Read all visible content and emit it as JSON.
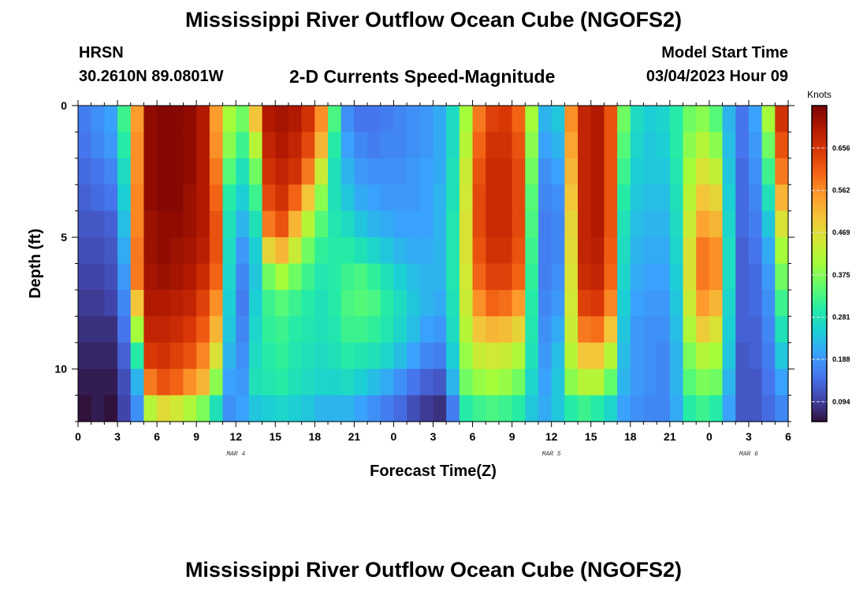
{
  "titles": {
    "main": "Mississippi River Outflow Ocean Cube (NGOFS2)",
    "repeat": "Mississippi River Outflow Ocean Cube (NGOFS2)"
  },
  "station": {
    "name": "HRSN",
    "coords": "30.2610N  89.0801W"
  },
  "plot_title": "2-D Currents Speed-Magnitude",
  "model_start": {
    "label": "Model Start Time",
    "value": "03/04/2023 Hour 09"
  },
  "colors": {
    "colormap": [
      "#30123b",
      "#4145ab",
      "#4675ed",
      "#39a2fc",
      "#1bcfd4",
      "#24eca6",
      "#61fc6c",
      "#a4fc3b",
      "#d1e834",
      "#f3c63a",
      "#fe9b2d",
      "#f36315",
      "#d93806",
      "#b11901",
      "#7a0403"
    ]
  },
  "chart_data": {
    "type": "heatmap",
    "title": "2-D Currents Speed-Magnitude",
    "xlabel": "Forecast Time(Z)",
    "ylabel": "Depth (ft)",
    "x_ticks": [
      "0",
      "3",
      "6",
      "9",
      "12",
      "15",
      "18",
      "21",
      "0",
      "3",
      "6",
      "9",
      "12",
      "15",
      "18",
      "21",
      "0",
      "3",
      "6"
    ],
    "x_tick_hours": [
      0,
      3,
      6,
      9,
      12,
      15,
      18,
      21,
      24,
      27,
      30,
      33,
      36,
      39,
      42,
      45,
      48,
      51,
      54
    ],
    "date_labels": [
      {
        "text": "MAR 4",
        "hour": 12
      },
      {
        "text": "MAR 5",
        "hour": 36
      },
      {
        "text": "MAR 6",
        "hour": 51
      }
    ],
    "xlim_hours": [
      0,
      54
    ],
    "y_ticks": [
      "0",
      "5",
      "10"
    ],
    "y_tick_values": [
      0,
      5,
      10
    ],
    "ylim_ft": [
      0,
      12
    ],
    "colorbar": {
      "unit": "Knots",
      "min": 0.05,
      "max": 0.75,
      "tick_values": [
        0.094,
        0.188,
        0.281,
        0.375,
        0.469,
        0.562,
        0.656
      ],
      "tick_labels": [
        "0.094",
        "0.188",
        "0.281",
        "0.375",
        "0.469",
        "0.562",
        "0.656"
      ]
    },
    "columns_hours": [
      0,
      1,
      2,
      3,
      4,
      5,
      6,
      7,
      8,
      9,
      10,
      11,
      12,
      13,
      14,
      15,
      16,
      17,
      18,
      19,
      20,
      21,
      22,
      23,
      24,
      25,
      26,
      27,
      28,
      29,
      30,
      31,
      32,
      33,
      34,
      35,
      36,
      37,
      38,
      39,
      40,
      41,
      42,
      43,
      44,
      45,
      46,
      47,
      48,
      49,
      50,
      51,
      52,
      53
    ],
    "depth_levels_ft": [
      0,
      1,
      2,
      3,
      4,
      5,
      6,
      7,
      8,
      9,
      10,
      11
    ],
    "profiles": [
      {
        "start_hour": 0,
        "values": [
          0.16,
          0.15,
          0.14,
          0.13,
          0.12,
          0.11,
          0.1,
          0.09,
          0.08,
          0.07,
          0.06,
          0.05
        ]
      },
      {
        "start_hour": 1,
        "values": [
          0.18,
          0.17,
          0.15,
          0.14,
          0.12,
          0.11,
          0.1,
          0.09,
          0.08,
          0.07,
          0.06,
          0.06
        ]
      },
      {
        "start_hour": 2,
        "values": [
          0.2,
          0.19,
          0.17,
          0.15,
          0.13,
          0.12,
          0.11,
          0.1,
          0.08,
          0.07,
          0.06,
          0.05
        ]
      },
      {
        "start_hour": 3,
        "values": [
          0.32,
          0.3,
          0.27,
          0.25,
          0.23,
          0.21,
          0.19,
          0.17,
          0.15,
          0.13,
          0.11,
          0.1
        ]
      },
      {
        "start_hour": 4,
        "values": [
          0.55,
          0.56,
          0.56,
          0.57,
          0.57,
          0.58,
          0.58,
          0.5,
          0.4,
          0.3,
          0.22,
          0.18
        ]
      },
      {
        "start_hour": 5,
        "values": [
          0.73,
          0.73,
          0.73,
          0.73,
          0.72,
          0.72,
          0.71,
          0.7,
          0.68,
          0.65,
          0.58,
          0.42
        ]
      },
      {
        "start_hour": 6,
        "values": [
          0.74,
          0.74,
          0.74,
          0.74,
          0.73,
          0.73,
          0.72,
          0.7,
          0.68,
          0.66,
          0.62,
          0.47
        ]
      },
      {
        "start_hour": 7,
        "values": [
          0.74,
          0.74,
          0.74,
          0.74,
          0.73,
          0.72,
          0.71,
          0.69,
          0.67,
          0.64,
          0.6,
          0.45
        ]
      },
      {
        "start_hour": 8,
        "values": [
          0.73,
          0.73,
          0.73,
          0.72,
          0.72,
          0.71,
          0.7,
          0.68,
          0.65,
          0.62,
          0.56,
          0.41
        ]
      },
      {
        "start_hour": 9,
        "values": [
          0.7,
          0.7,
          0.7,
          0.7,
          0.7,
          0.69,
          0.67,
          0.64,
          0.61,
          0.57,
          0.52,
          0.37
        ]
      },
      {
        "start_hour": 10,
        "values": [
          0.55,
          0.56,
          0.58,
          0.6,
          0.62,
          0.62,
          0.6,
          0.56,
          0.52,
          0.46,
          0.38,
          0.28
        ]
      },
      {
        "start_hour": 11,
        "values": [
          0.4,
          0.38,
          0.34,
          0.3,
          0.28,
          0.27,
          0.26,
          0.25,
          0.24,
          0.22,
          0.2,
          0.18
        ]
      },
      {
        "start_hour": 12,
        "values": [
          0.36,
          0.32,
          0.28,
          0.25,
          0.22,
          0.19,
          0.17,
          0.16,
          0.17,
          0.18,
          0.19,
          0.2
        ]
      },
      {
        "start_hour": 13,
        "values": [
          0.5,
          0.42,
          0.36,
          0.32,
          0.28,
          0.25,
          0.24,
          0.25,
          0.26,
          0.27,
          0.28,
          0.24
        ]
      },
      {
        "start_hour": 14,
        "values": [
          0.7,
          0.68,
          0.66,
          0.63,
          0.58,
          0.48,
          0.36,
          0.32,
          0.31,
          0.3,
          0.29,
          0.25
        ]
      },
      {
        "start_hour": 15,
        "values": [
          0.71,
          0.7,
          0.68,
          0.66,
          0.62,
          0.52,
          0.4,
          0.34,
          0.32,
          0.31,
          0.3,
          0.26
        ]
      },
      {
        "start_hour": 16,
        "values": [
          0.7,
          0.68,
          0.66,
          0.6,
          0.52,
          0.44,
          0.36,
          0.32,
          0.3,
          0.29,
          0.28,
          0.25
        ]
      },
      {
        "start_hour": 17,
        "values": [
          0.66,
          0.63,
          0.58,
          0.5,
          0.42,
          0.36,
          0.32,
          0.3,
          0.29,
          0.28,
          0.27,
          0.24
        ]
      },
      {
        "start_hour": 18,
        "values": [
          0.56,
          0.52,
          0.44,
          0.38,
          0.34,
          0.31,
          0.29,
          0.28,
          0.28,
          0.27,
          0.26,
          0.22
        ]
      },
      {
        "start_hour": 19,
        "values": [
          0.33,
          0.3,
          0.28,
          0.28,
          0.29,
          0.3,
          0.3,
          0.3,
          0.29,
          0.28,
          0.26,
          0.22
        ]
      },
      {
        "start_hour": 20,
        "values": [
          0.18,
          0.2,
          0.22,
          0.24,
          0.27,
          0.3,
          0.32,
          0.33,
          0.32,
          0.3,
          0.27,
          0.22
        ]
      },
      {
        "start_hour": 21,
        "values": [
          0.15,
          0.17,
          0.19,
          0.21,
          0.24,
          0.28,
          0.33,
          0.34,
          0.32,
          0.29,
          0.25,
          0.2
        ]
      },
      {
        "start_hour": 22,
        "values": [
          0.15,
          0.16,
          0.18,
          0.2,
          0.22,
          0.26,
          0.31,
          0.33,
          0.31,
          0.28,
          0.23,
          0.18
        ]
      },
      {
        "start_hour": 23,
        "values": [
          0.16,
          0.17,
          0.18,
          0.19,
          0.21,
          0.24,
          0.28,
          0.3,
          0.29,
          0.26,
          0.21,
          0.16
        ]
      },
      {
        "start_hour": 24,
        "values": [
          0.17,
          0.17,
          0.18,
          0.19,
          0.2,
          0.22,
          0.25,
          0.27,
          0.26,
          0.23,
          0.18,
          0.14
        ]
      },
      {
        "start_hour": 25,
        "values": [
          0.18,
          0.18,
          0.19,
          0.19,
          0.2,
          0.21,
          0.23,
          0.24,
          0.23,
          0.2,
          0.15,
          0.11
        ]
      },
      {
        "start_hour": 26,
        "values": [
          0.19,
          0.19,
          0.2,
          0.2,
          0.2,
          0.21,
          0.22,
          0.22,
          0.2,
          0.17,
          0.13,
          0.09
        ]
      },
      {
        "start_hour": 27,
        "values": [
          0.21,
          0.21,
          0.21,
          0.22,
          0.22,
          0.22,
          0.22,
          0.21,
          0.19,
          0.16,
          0.12,
          0.08
        ]
      },
      {
        "start_hour": 28,
        "values": [
          0.27,
          0.27,
          0.28,
          0.28,
          0.29,
          0.29,
          0.29,
          0.28,
          0.27,
          0.25,
          0.22,
          0.16
        ]
      },
      {
        "start_hour": 29,
        "values": [
          0.4,
          0.42,
          0.44,
          0.45,
          0.46,
          0.46,
          0.45,
          0.44,
          0.42,
          0.39,
          0.36,
          0.3
        ]
      },
      {
        "start_hour": 30,
        "values": [
          0.58,
          0.6,
          0.62,
          0.63,
          0.63,
          0.62,
          0.6,
          0.56,
          0.5,
          0.44,
          0.39,
          0.32
        ]
      },
      {
        "start_hour": 31,
        "values": [
          0.64,
          0.66,
          0.67,
          0.67,
          0.67,
          0.66,
          0.64,
          0.6,
          0.52,
          0.45,
          0.4,
          0.33
        ]
      },
      {
        "start_hour": 32,
        "values": [
          0.65,
          0.66,
          0.67,
          0.67,
          0.67,
          0.66,
          0.64,
          0.59,
          0.51,
          0.44,
          0.39,
          0.32
        ]
      },
      {
        "start_hour": 33,
        "values": [
          0.6,
          0.62,
          0.63,
          0.63,
          0.63,
          0.62,
          0.6,
          0.55,
          0.48,
          0.41,
          0.36,
          0.3
        ]
      },
      {
        "start_hour": 34,
        "values": [
          0.4,
          0.38,
          0.36,
          0.34,
          0.33,
          0.32,
          0.31,
          0.3,
          0.29,
          0.28,
          0.26,
          0.24
        ]
      },
      {
        "start_hour": 35,
        "values": [
          0.22,
          0.2,
          0.18,
          0.17,
          0.16,
          0.16,
          0.16,
          0.17,
          0.18,
          0.19,
          0.2,
          0.21
        ]
      },
      {
        "start_hour": 36,
        "values": [
          0.24,
          0.22,
          0.2,
          0.18,
          0.17,
          0.17,
          0.18,
          0.19,
          0.21,
          0.23,
          0.24,
          0.24
        ]
      },
      {
        "start_hour": 37,
        "values": [
          0.56,
          0.54,
          0.52,
          0.5,
          0.48,
          0.47,
          0.46,
          0.45,
          0.44,
          0.42,
          0.38,
          0.3
        ]
      },
      {
        "start_hour": 38,
        "values": [
          0.68,
          0.68,
          0.68,
          0.68,
          0.68,
          0.68,
          0.67,
          0.64,
          0.58,
          0.5,
          0.42,
          0.32
        ]
      },
      {
        "start_hour": 39,
        "values": [
          0.7,
          0.7,
          0.7,
          0.7,
          0.7,
          0.69,
          0.68,
          0.65,
          0.59,
          0.5,
          0.42,
          0.3
        ]
      },
      {
        "start_hour": 40,
        "values": [
          0.62,
          0.62,
          0.62,
          0.62,
          0.62,
          0.61,
          0.6,
          0.57,
          0.5,
          0.42,
          0.35,
          0.26
        ]
      },
      {
        "start_hour": 41,
        "values": [
          0.36,
          0.34,
          0.32,
          0.3,
          0.28,
          0.27,
          0.26,
          0.25,
          0.24,
          0.23,
          0.22,
          0.2
        ]
      },
      {
        "start_hour": 42,
        "values": [
          0.27,
          0.26,
          0.25,
          0.24,
          0.23,
          0.22,
          0.21,
          0.2,
          0.19,
          0.19,
          0.19,
          0.18
        ]
      },
      {
        "start_hour": 43,
        "values": [
          0.25,
          0.24,
          0.24,
          0.23,
          0.22,
          0.21,
          0.2,
          0.19,
          0.18,
          0.18,
          0.18,
          0.17
        ]
      },
      {
        "start_hour": 44,
        "values": [
          0.26,
          0.25,
          0.24,
          0.23,
          0.22,
          0.21,
          0.2,
          0.19,
          0.18,
          0.17,
          0.17,
          0.17
        ]
      },
      {
        "start_hour": 45,
        "values": [
          0.3,
          0.3,
          0.29,
          0.28,
          0.27,
          0.26,
          0.25,
          0.24,
          0.23,
          0.22,
          0.22,
          0.21
        ]
      },
      {
        "start_hour": 46,
        "values": [
          0.36,
          0.38,
          0.4,
          0.42,
          0.44,
          0.46,
          0.46,
          0.44,
          0.41,
          0.37,
          0.34,
          0.3
        ]
      },
      {
        "start_hour": 47,
        "values": [
          0.38,
          0.42,
          0.46,
          0.5,
          0.54,
          0.58,
          0.58,
          0.55,
          0.49,
          0.42,
          0.37,
          0.32
        ]
      },
      {
        "start_hour": 48,
        "values": [
          0.34,
          0.38,
          0.43,
          0.48,
          0.52,
          0.56,
          0.56,
          0.52,
          0.46,
          0.4,
          0.36,
          0.3
        ]
      },
      {
        "start_hour": 49,
        "values": [
          0.22,
          0.23,
          0.24,
          0.25,
          0.26,
          0.27,
          0.27,
          0.26,
          0.25,
          0.24,
          0.22,
          0.2
        ]
      },
      {
        "start_hour": 50,
        "values": [
          0.15,
          0.15,
          0.14,
          0.14,
          0.14,
          0.13,
          0.13,
          0.13,
          0.13,
          0.12,
          0.12,
          0.12
        ]
      },
      {
        "start_hour": 51,
        "values": [
          0.2,
          0.19,
          0.18,
          0.17,
          0.16,
          0.15,
          0.14,
          0.14,
          0.13,
          0.13,
          0.12,
          0.12
        ]
      },
      {
        "start_hour": 52,
        "values": [
          0.4,
          0.36,
          0.32,
          0.28,
          0.24,
          0.21,
          0.19,
          0.18,
          0.17,
          0.16,
          0.15,
          0.14
        ]
      },
      {
        "start_hour": 53,
        "values": [
          0.66,
          0.62,
          0.58,
          0.52,
          0.46,
          0.4,
          0.36,
          0.32,
          0.28,
          0.24,
          0.2,
          0.17
        ]
      }
    ]
  }
}
